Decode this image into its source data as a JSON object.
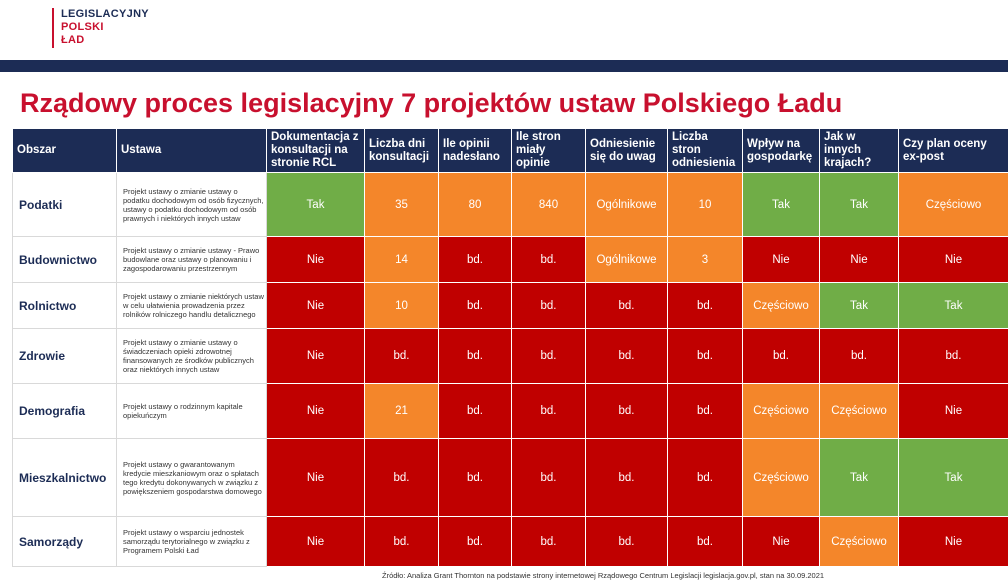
{
  "logo": {
    "line1": "LEGISLACYJNY",
    "line2": "POLSKI",
    "line3": "ŁAD"
  },
  "title": "Rządowy proces legislacyjny 7 projektów ustaw Polskiego Ładu",
  "headers": [
    "Obszar",
    "Ustawa",
    "Dokumentacja z konsultacji na stronie RCL",
    "Liczba dni konsultacji",
    "Ile opinii nadesłano",
    "Ile stron miały opinie",
    "Odniesienie się do uwag",
    "Liczba stron odniesienia",
    "Wpływ na gospodarkę",
    "Jak w innych krajach?",
    "Czy plan oceny ex-post"
  ],
  "rows": [
    {
      "area": "Podatki",
      "law": "Projekt ustawy o zmianie ustawy o podatku dochodowym od osób fizycznych, ustawy o podatku dochodowym od osób prawnych i niektórych innych ustaw",
      "cells": [
        "Tak",
        "35",
        "80",
        "840",
        "Ogólnikowe",
        "10",
        "Tak",
        "Tak",
        "Częściowo"
      ],
      "colors": [
        "g",
        "o",
        "o",
        "o",
        "o",
        "o",
        "g",
        "g",
        "o"
      ]
    },
    {
      "area": "Budownictwo",
      "law": "Projekt ustawy o zmianie ustawy - Prawo budowlane oraz ustawy o planowaniu i zagospodarowaniu przestrzennym",
      "cells": [
        "Nie",
        "14",
        "bd.",
        "bd.",
        "Ogólnikowe",
        "3",
        "Nie",
        "Nie",
        "Nie"
      ],
      "colors": [
        "r",
        "o",
        "r",
        "r",
        "o",
        "o",
        "r",
        "r",
        "r"
      ]
    },
    {
      "area": "Rolnictwo",
      "law": "Projekt ustawy o zmianie niektórych ustaw w celu ułatwienia prowadzenia przez rolników rolniczego handlu detalicznego",
      "cells": [
        "Nie",
        "10",
        "bd.",
        "bd.",
        "bd.",
        "bd.",
        "Częściowo",
        "Tak",
        "Tak"
      ],
      "colors": [
        "r",
        "o",
        "r",
        "r",
        "r",
        "r",
        "o",
        "g",
        "g"
      ]
    },
    {
      "area": "Zdrowie",
      "law": "Projekt ustawy o zmianie ustawy o świadczeniach opieki zdrowotnej finansowanych ze środków publicznych oraz niektórych innych ustaw",
      "cells": [
        "Nie",
        "bd.",
        "bd.",
        "bd.",
        "bd.",
        "bd.",
        "bd.",
        "bd.",
        "bd."
      ],
      "colors": [
        "r",
        "r",
        "r",
        "r",
        "r",
        "r",
        "r",
        "r",
        "r"
      ]
    },
    {
      "area": "Demografia",
      "law": "Projekt ustawy o rodzinnym kapitale opiekuńczym",
      "cells": [
        "Nie",
        "21",
        "bd.",
        "bd.",
        "bd.",
        "bd.",
        "Częściowo",
        "Częściowo",
        "Nie"
      ],
      "colors": [
        "r",
        "o",
        "r",
        "r",
        "r",
        "r",
        "o",
        "o",
        "r"
      ]
    },
    {
      "area": "Mieszkalnictwo",
      "law": "Projekt ustawy o gwarantowanym kredycie mieszkaniowym oraz o spłatach tego kredytu dokonywanych w związku z powiększeniem gospodarstwa domowego",
      "cells": [
        "Nie",
        "bd.",
        "bd.",
        "bd.",
        "bd.",
        "bd.",
        "Częściowo",
        "Tak",
        "Tak"
      ],
      "colors": [
        "r",
        "r",
        "r",
        "r",
        "r",
        "r",
        "o",
        "g",
        "g"
      ]
    },
    {
      "area": "Samorządy",
      "law": "Projekt ustawy o wsparciu jednostek samorządu terytorialnego w związku z Programem Polski Ład",
      "cells": [
        "Nie",
        "bd.",
        "bd.",
        "bd.",
        "bd.",
        "bd.",
        "Nie",
        "Częściowo",
        "Nie"
      ],
      "colors": [
        "r",
        "r",
        "r",
        "r",
        "r",
        "r",
        "r",
        "o",
        "r"
      ]
    }
  ],
  "source": "Źródło: Analiza Grant Thornton na podstawie strony internetowej Rządowego Centrum Legislacji legislacja.gov.pl, stan na 30.09.2021",
  "colors": {
    "green": "#70ad47",
    "orange": "#f4862a",
    "red": "#c00000",
    "navy": "#1c2c55",
    "brand_red": "#c8102e"
  }
}
